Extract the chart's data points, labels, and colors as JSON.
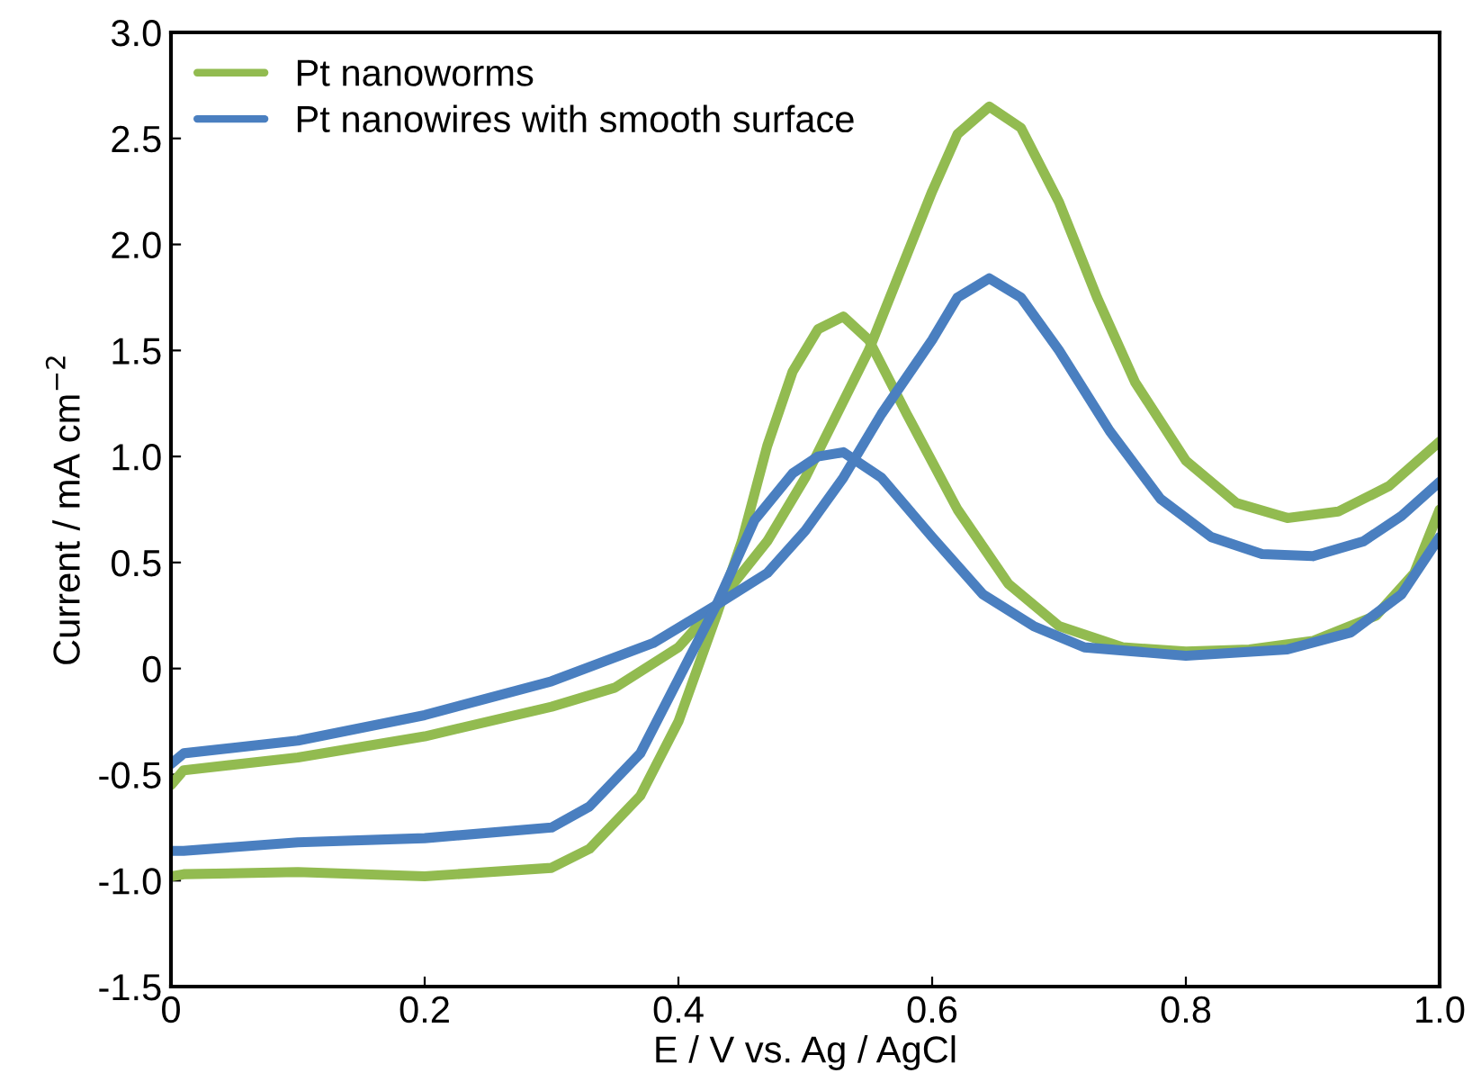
{
  "chart_data": {
    "type": "line",
    "xlabel": "E / V vs. Ag / AgCl",
    "ylabel": "Current / mA cm$^{−2}$",
    "xlim": [
      0,
      1.0
    ],
    "ylim": [
      -1.5,
      3.0
    ],
    "xticks": [
      0,
      {
        "value": 0.2,
        "label": "0.2"
      },
      {
        "value": 0.4,
        "label": "0.4"
      },
      {
        "value": 0.6,
        "label": "0.6"
      },
      {
        "value": 0.8,
        "label": "0.8"
      },
      {
        "value": 1.0,
        "label": "1.0"
      }
    ],
    "yticks": [
      {
        "value": -1.5,
        "label": "-1.5"
      },
      {
        "value": -1.0,
        "label": "-1.0"
      },
      {
        "value": -0.5,
        "label": "-0.5"
      },
      0,
      {
        "value": 0.5,
        "label": "0.5"
      },
      {
        "value": 1.0,
        "label": "1.0"
      },
      {
        "value": 1.5,
        "label": "1.5"
      },
      {
        "value": 2.0,
        "label": "2.0"
      },
      {
        "value": 2.5,
        "label": "2.5"
      },
      {
        "value": 3.0,
        "label": "3.0"
      }
    ],
    "grid": false,
    "legend": "top left",
    "marker": "none",
    "line_style": "solid",
    "series": [
      {
        "name": "Pt nanoworms",
        "color": "#92bb50",
        "x": [
          0,
          0.01,
          0.1,
          0.2,
          0.3,
          0.35,
          0.4,
          0.43,
          0.47,
          0.5,
          0.55,
          0.58,
          0.6,
          0.62,
          0.645,
          0.67,
          0.7,
          0.73,
          0.76,
          0.8,
          0.84,
          0.88,
          0.92,
          0.96,
          1.0
        ],
        "values": [
          -0.55,
          -0.48,
          -0.42,
          -0.32,
          -0.18,
          -0.09,
          0.1,
          0.3,
          0.6,
          0.9,
          1.5,
          1.95,
          2.25,
          2.52,
          2.65,
          2.55,
          2.2,
          1.75,
          1.35,
          0.98,
          0.78,
          0.71,
          0.74,
          0.86,
          1.07
        ]
      },
      {
        "color": "#92bb50",
        "x": [
          1.0,
          0.98,
          0.95,
          0.9,
          0.85,
          0.8,
          0.75,
          0.7,
          0.66,
          0.62,
          0.58,
          0.55,
          0.53,
          0.51,
          0.49,
          0.47,
          0.45,
          0.43,
          0.4,
          0.37,
          0.33,
          0.3,
          0.2,
          0.1,
          0.01,
          0.0
        ],
        "values": [
          0.75,
          0.45,
          0.25,
          0.13,
          0.09,
          0.08,
          0.1,
          0.2,
          0.4,
          0.75,
          1.2,
          1.55,
          1.66,
          1.6,
          1.4,
          1.05,
          0.6,
          0.25,
          -0.25,
          -0.6,
          -0.85,
          -0.94,
          -0.98,
          -0.96,
          -0.97,
          -0.98
        ]
      },
      {
        "name": "Pt nanowires with smooth surface",
        "color": "#4a7fc0",
        "x": [
          0,
          0.01,
          0.1,
          0.2,
          0.3,
          0.38,
          0.43,
          0.47,
          0.5,
          0.53,
          0.56,
          0.6,
          0.62,
          0.645,
          0.67,
          0.7,
          0.74,
          0.78,
          0.82,
          0.86,
          0.9,
          0.94,
          0.97,
          1.0
        ],
        "values": [
          -0.45,
          -0.4,
          -0.34,
          -0.22,
          -0.06,
          0.12,
          0.3,
          0.45,
          0.65,
          0.9,
          1.2,
          1.55,
          1.75,
          1.84,
          1.75,
          1.5,
          1.12,
          0.8,
          0.62,
          0.54,
          0.53,
          0.6,
          0.72,
          0.88
        ]
      },
      {
        "color": "#4a7fc0",
        "x": [
          1.0,
          0.97,
          0.93,
          0.88,
          0.8,
          0.72,
          0.68,
          0.64,
          0.6,
          0.56,
          0.53,
          0.51,
          0.49,
          0.46,
          0.43,
          0.4,
          0.37,
          0.33,
          0.3,
          0.2,
          0.1,
          0.01,
          0.0
        ],
        "values": [
          0.62,
          0.35,
          0.17,
          0.09,
          0.06,
          0.1,
          0.2,
          0.35,
          0.62,
          0.9,
          1.02,
          1.0,
          0.92,
          0.7,
          0.3,
          -0.05,
          -0.4,
          -0.65,
          -0.75,
          -0.8,
          -0.82,
          -0.86,
          -0.86
        ]
      }
    ]
  }
}
